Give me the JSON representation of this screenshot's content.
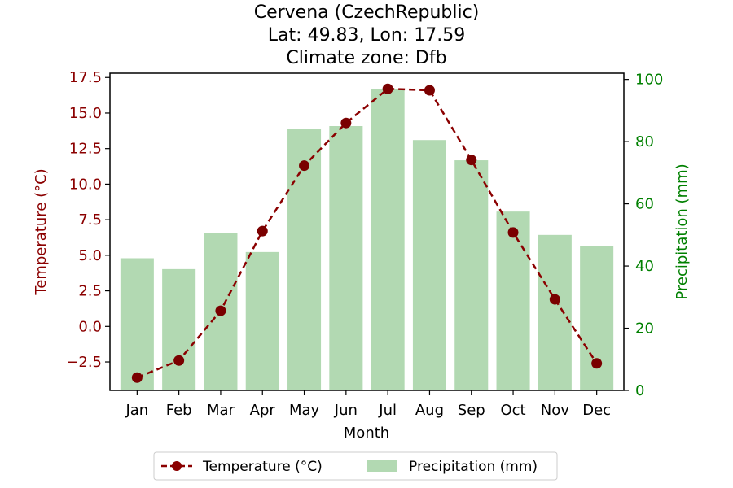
{
  "chart_data": {
    "type": "bar+line",
    "title_lines": [
      "Cervena (CzechRepublic)",
      "Lat: 49.83, Lon: 17.59",
      "Climate zone: Dfb"
    ],
    "xlabel": "Month",
    "categories": [
      "Jan",
      "Feb",
      "Mar",
      "Apr",
      "May",
      "Jun",
      "Jul",
      "Aug",
      "Sep",
      "Oct",
      "Nov",
      "Dec"
    ],
    "left_axis": {
      "label": "Temperature (°C)",
      "range": [
        -4.5,
        17.8
      ],
      "ticks": [
        -2.5,
        0.0,
        2.5,
        5.0,
        7.5,
        10.0,
        12.5,
        15.0,
        17.5
      ],
      "tick_labels": [
        "−2.5",
        "0.0",
        "2.5",
        "5.0",
        "7.5",
        "10.0",
        "12.5",
        "15.0",
        "17.5"
      ],
      "color": "#8b0000"
    },
    "right_axis": {
      "label": "Precipitation (mm)",
      "range": [
        0,
        102
      ],
      "ticks": [
        0,
        20,
        40,
        60,
        80,
        100
      ],
      "tick_labels": [
        "0",
        "20",
        "40",
        "60",
        "80",
        "100"
      ],
      "color": "#008000"
    },
    "series": [
      {
        "name": "Temperature (°C)",
        "kind": "line",
        "axis": "left",
        "color": "#8b0000",
        "values": [
          -3.6,
          -2.4,
          1.1,
          6.7,
          11.3,
          14.3,
          16.7,
          16.6,
          11.7,
          6.6,
          1.9,
          -2.6
        ]
      },
      {
        "name": "Precipitation (mm)",
        "kind": "bar",
        "axis": "right",
        "color": "#b2d9b2",
        "values": [
          42.5,
          39.0,
          50.5,
          44.5,
          84.0,
          85.0,
          97.0,
          80.5,
          74.0,
          57.5,
          50.0,
          46.5
        ]
      }
    ],
    "legend_position": "bottom-center",
    "grid": false
  }
}
